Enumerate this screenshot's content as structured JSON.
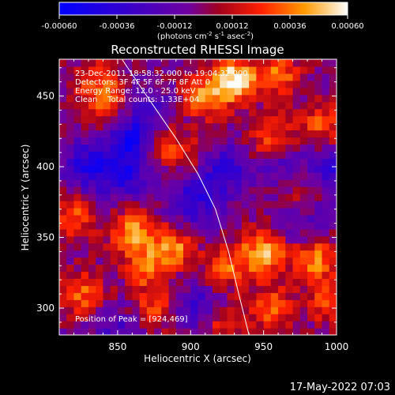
{
  "chart_data": {
    "type": "heatmap",
    "title": "Reconstructed RHESSI Image",
    "xlabel": "Heliocentric X (arcsec)",
    "ylabel": "Heliocentric Y (arcsec)",
    "xlim": [
      810,
      1000
    ],
    "ylim": [
      281,
      476
    ],
    "x_ticks": [
      850,
      900,
      950,
      1000
    ],
    "y_ticks": [
      300,
      350,
      400,
      450
    ],
    "colorbar": {
      "range": [
        -0.0006,
        0.0006
      ],
      "tick_labels": [
        "-0.00060",
        "-0.00036",
        "-0.00012",
        "0.00012",
        "0.00036",
        "0.00060"
      ],
      "tick_values": [
        -0.0006,
        -0.00036,
        -0.00012,
        0.00012,
        0.00036,
        0.0006
      ],
      "unit_pre": "(photons cm",
      "unit_exp1": "-2",
      "unit_mid": " s",
      "unit_exp2": "-1",
      "unit_mid2": " asec",
      "unit_exp3": "-2",
      "unit_post": ")"
    },
    "annotations": {
      "line1": "23-Dec-2011 18:58:32.000 to 19:04:32.000",
      "line2": "Detectors: 3F 4F 5F 6F 7F 8F Att 0",
      "line3": "Energy Range: 12.0 - 25.0 keV",
      "line4": "Clean    Total counts: 1.33E+04",
      "peak": "Position of Peak = [924,469]"
    },
    "limb_curve": [
      [
        853,
        476
      ],
      [
        870,
        450
      ],
      [
        890,
        420
      ],
      [
        905,
        395
      ],
      [
        917,
        370
      ],
      [
        926,
        340
      ],
      [
        933,
        310
      ],
      [
        940,
        281
      ]
    ],
    "hotspots": [
      {
        "x": 930,
        "y": 462,
        "v": 1.0
      },
      {
        "x": 910,
        "y": 450,
        "v": 0.7
      },
      {
        "x": 960,
        "y": 465,
        "v": 0.6
      },
      {
        "x": 845,
        "y": 445,
        "v": 0.55
      },
      {
        "x": 835,
        "y": 460,
        "v": 0.45
      },
      {
        "x": 880,
        "y": 415,
        "v": 0.45
      },
      {
        "x": 900,
        "y": 405,
        "v": 0.35
      },
      {
        "x": 955,
        "y": 420,
        "v": 0.55
      },
      {
        "x": 990,
        "y": 430,
        "v": 0.5
      },
      {
        "x": 975,
        "y": 385,
        "v": 0.45
      },
      {
        "x": 860,
        "y": 355,
        "v": 0.7
      },
      {
        "x": 820,
        "y": 365,
        "v": 0.55
      },
      {
        "x": 890,
        "y": 345,
        "v": 0.75
      },
      {
        "x": 870,
        "y": 330,
        "v": 0.6
      },
      {
        "x": 925,
        "y": 330,
        "v": 0.55
      },
      {
        "x": 950,
        "y": 340,
        "v": 0.8
      },
      {
        "x": 985,
        "y": 335,
        "v": 0.7
      },
      {
        "x": 995,
        "y": 305,
        "v": 0.55
      },
      {
        "x": 825,
        "y": 310,
        "v": 0.6
      },
      {
        "x": 875,
        "y": 300,
        "v": 0.5
      },
      {
        "x": 955,
        "y": 300,
        "v": 0.6
      },
      {
        "x": 920,
        "y": 290,
        "v": 0.45
      }
    ],
    "coldspots": [
      {
        "x": 860,
        "y": 420,
        "v": -0.7
      },
      {
        "x": 830,
        "y": 400,
        "v": -0.6
      },
      {
        "x": 855,
        "y": 395,
        "v": -0.55
      },
      {
        "x": 905,
        "y": 385,
        "v": -0.5
      },
      {
        "x": 925,
        "y": 400,
        "v": -0.45
      },
      {
        "x": 965,
        "y": 400,
        "v": -0.4
      },
      {
        "x": 995,
        "y": 395,
        "v": -0.5
      },
      {
        "x": 870,
        "y": 440,
        "v": -0.35
      },
      {
        "x": 900,
        "y": 360,
        "v": -0.35
      },
      {
        "x": 905,
        "y": 300,
        "v": -0.45
      },
      {
        "x": 850,
        "y": 285,
        "v": -0.35
      },
      {
        "x": 975,
        "y": 360,
        "v": -0.3
      }
    ]
  },
  "footer": {
    "date": "17-May-2022 07:03"
  }
}
